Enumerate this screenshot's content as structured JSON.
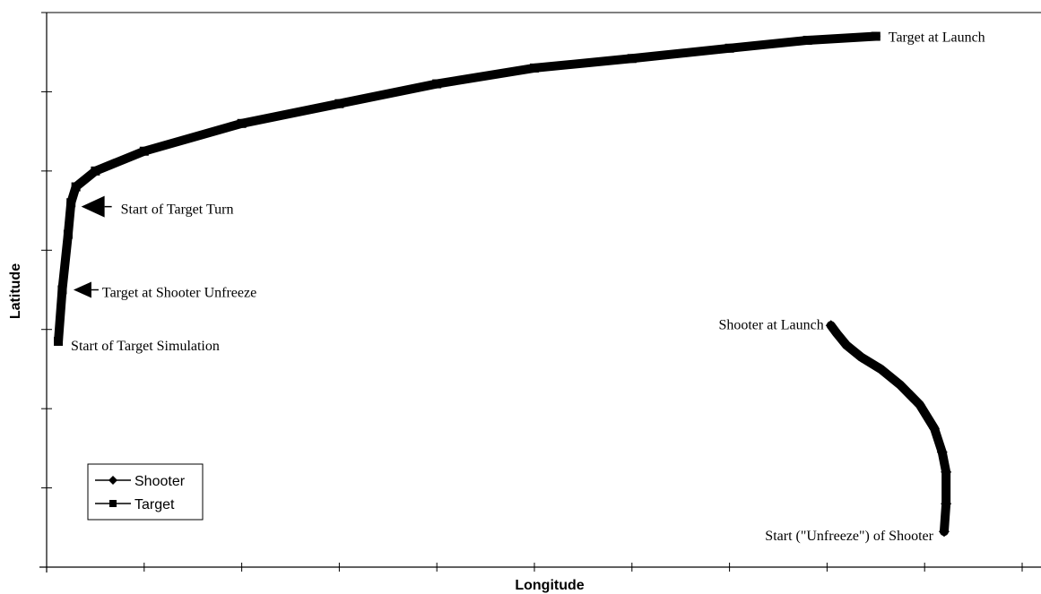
{
  "chart_data": {
    "type": "line",
    "title": "",
    "xlabel": "Longitude",
    "ylabel": "Latitude",
    "xlim": [
      0,
      10
    ],
    "ylim": [
      0,
      7
    ],
    "x_tick_count": 10,
    "y_tick_count": 7,
    "tick_labels_shown": false,
    "grid": false,
    "legend_position": "bottom-left",
    "series": [
      {
        "name": "Shooter",
        "marker": "diamond",
        "color": "#000000",
        "points": [
          [
            9.2,
            0.45
          ],
          [
            9.22,
            0.8
          ],
          [
            9.22,
            1.2
          ],
          [
            9.18,
            1.45
          ],
          [
            9.1,
            1.75
          ],
          [
            8.95,
            2.05
          ],
          [
            8.75,
            2.3
          ],
          [
            8.55,
            2.5
          ],
          [
            8.35,
            2.65
          ],
          [
            8.2,
            2.8
          ],
          [
            8.1,
            2.95
          ],
          [
            8.04,
            3.05
          ]
        ]
      },
      {
        "name": "Target",
        "marker": "square",
        "color": "#000000",
        "points": [
          [
            0.12,
            2.85
          ],
          [
            0.16,
            3.5
          ],
          [
            0.22,
            4.2
          ],
          [
            0.25,
            4.6
          ],
          [
            0.3,
            4.8
          ],
          [
            0.5,
            5.0
          ],
          [
            1.0,
            5.25
          ],
          [
            2.0,
            5.6
          ],
          [
            3.0,
            5.85
          ],
          [
            4.0,
            6.1
          ],
          [
            5.0,
            6.3
          ],
          [
            6.0,
            6.42
          ],
          [
            7.0,
            6.55
          ],
          [
            7.8,
            6.65
          ],
          [
            8.5,
            6.7
          ]
        ]
      }
    ],
    "annotations": [
      {
        "id": "target-launch",
        "text": "Target at Launch",
        "x": 8.5,
        "y": 6.7,
        "arrow": false
      },
      {
        "id": "start-turn",
        "text": "Start of Target Turn",
        "x": 0.3,
        "y": 4.55,
        "arrow": true
      },
      {
        "id": "unfreeze",
        "text": "Target at Shooter Unfreeze",
        "x": 0.22,
        "y": 3.5,
        "arrow": true
      },
      {
        "id": "start-sim",
        "text": "Start of Target Simulation",
        "x": 0.12,
        "y": 2.85,
        "arrow": false
      },
      {
        "id": "shooter-launch",
        "text": "Shooter at Launch",
        "x": 8.04,
        "y": 3.05,
        "arrow": false
      },
      {
        "id": "shooter-start",
        "text": "Start (\"Unfreeze\") of Shooter",
        "x": 9.2,
        "y": 0.45,
        "arrow": false
      }
    ]
  }
}
